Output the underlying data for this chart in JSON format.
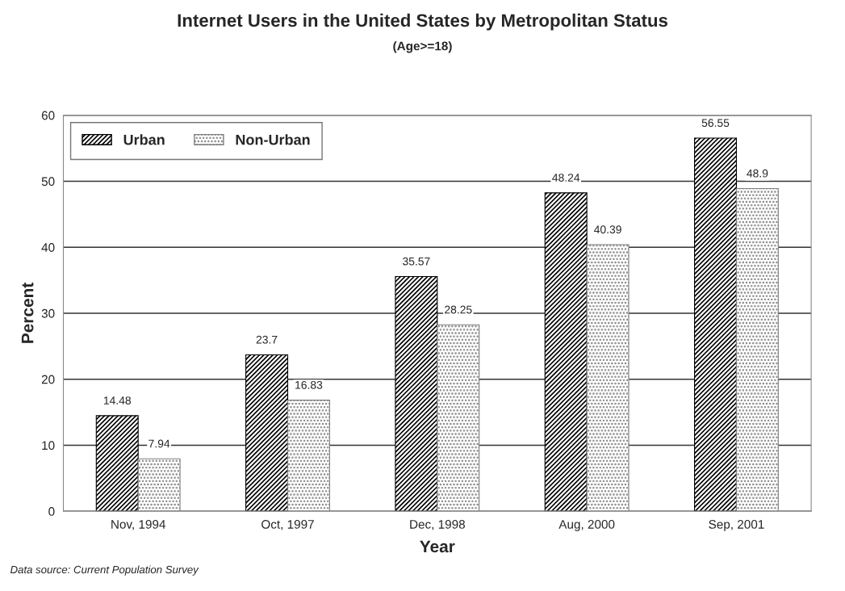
{
  "chart_data": {
    "type": "bar",
    "title": "Internet Users in the United States by Metropolitan Status",
    "subtitle": "(Age>=18)",
    "xlabel": "Year",
    "ylabel": "Percent",
    "categories": [
      "Nov, 1994",
      "Oct, 1997",
      "Dec, 1998",
      "Aug, 2000",
      "Sep, 2001"
    ],
    "series": [
      {
        "name": "Urban",
        "color": "#000000",
        "values": [
          14.48,
          23.7,
          35.57,
          48.24,
          56.55
        ]
      },
      {
        "name": "Non-Urban",
        "color": "#808080",
        "values": [
          7.94,
          16.83,
          28.25,
          40.39,
          48.9
        ]
      }
    ],
    "ylim": [
      0,
      60
    ],
    "yticks": [
      0,
      10,
      20,
      30,
      40,
      50,
      60
    ],
    "grid": "y",
    "legend": "top left",
    "data_labels": true,
    "annotations": [
      "Data source: Current Population Survey"
    ]
  }
}
